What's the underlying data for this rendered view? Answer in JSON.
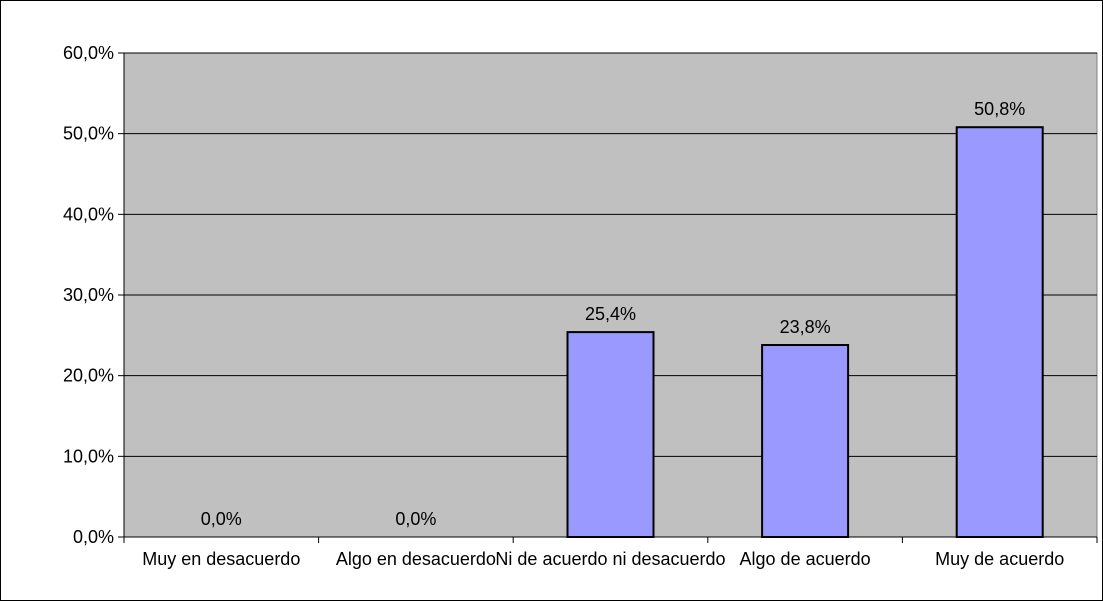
{
  "chart_data": {
    "type": "bar",
    "categories": [
      "Muy en desacuerdo",
      "Algo en desacuerdo",
      "Ni de acuerdo ni desacuerdo",
      "Algo de acuerdo",
      "Muy de acuerdo"
    ],
    "values": [
      0.0,
      0.0,
      25.4,
      23.8,
      50.8
    ],
    "data_labels": [
      "0,0%",
      "0,0%",
      "25,4%",
      "23,8%",
      "50,8%"
    ],
    "ylim": [
      0,
      60
    ],
    "yticks": [
      0,
      10,
      20,
      30,
      40,
      50,
      60
    ],
    "ytick_labels": [
      "0,0%",
      "10,0%",
      "20,0%",
      "30,0%",
      "40,0%",
      "50,0%",
      "60,0%"
    ],
    "grid": true,
    "legend": "none",
    "colors": {
      "plot_background": "#c0c0c0",
      "bar_fill": "#9999ff",
      "bar_stroke": "#000000",
      "gridline": "#000000",
      "frame": "#808080"
    }
  }
}
